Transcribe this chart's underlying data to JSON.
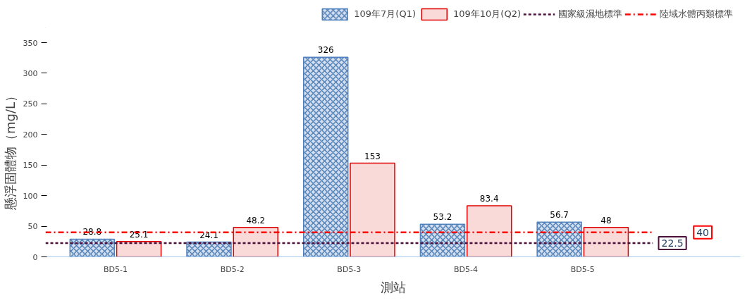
{
  "chart_data": {
    "type": "bar",
    "ylabel": "懸浮固體物（mg/L）",
    "xlabel": "測站",
    "categories": [
      "BD5-1",
      "BD5-2",
      "BD5-3",
      "BD5-4",
      "BD5-5"
    ],
    "series": [
      {
        "name": "109年7月(Q1)",
        "color": "#4f81bd",
        "values": [
          28.8,
          24.1,
          326,
          53.2,
          56.7
        ]
      },
      {
        "name": "109年10月(Q2)",
        "color": "#e00000",
        "values": [
          25.1,
          48.2,
          153,
          83.4,
          48
        ]
      }
    ],
    "ref_lines": [
      {
        "axis": "y",
        "value": 22.5,
        "label": "國家級濕地標準",
        "color": "#4b0f3c",
        "line_style": "dashed"
      },
      {
        "axis": "y",
        "value": 40,
        "label": "陸域水體丙類標準",
        "color": "#ff0000",
        "line_style": "dashdot"
      }
    ],
    "annotations": [
      "22.5",
      "40"
    ],
    "ylim": [
      0,
      350
    ],
    "yticks": [
      0,
      50,
      100,
      150,
      200,
      250,
      300,
      350
    ],
    "data_labels": true,
    "grid": false,
    "legend": "top right"
  }
}
